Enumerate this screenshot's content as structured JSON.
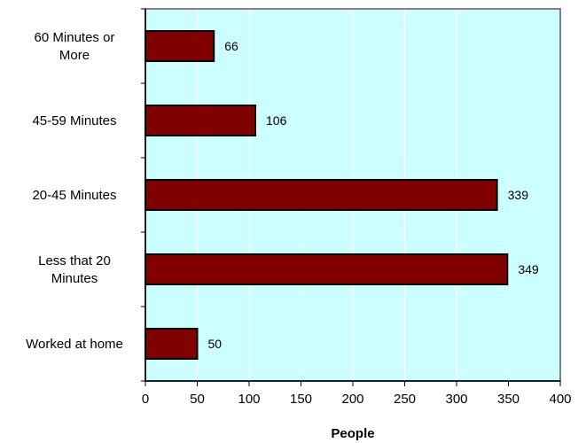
{
  "chart_data": {
    "type": "bar",
    "orientation": "horizontal",
    "categories": [
      [
        "60 Minutes or",
        "More"
      ],
      [
        "45-59 Minutes"
      ],
      [
        "20-45 Minutes"
      ],
      [
        "Less that 20",
        "Minutes"
      ],
      [
        "Worked at home"
      ]
    ],
    "values": [
      66,
      106,
      339,
      349,
      50
    ],
    "xlabel": "People",
    "ylabel": "",
    "title": "",
    "xlim": [
      0,
      400
    ],
    "xticks": [
      0,
      50,
      100,
      150,
      200,
      250,
      300,
      350,
      400
    ],
    "grid": true,
    "legend": "none",
    "colors": {
      "plot_background": "#ccffff",
      "bar_fill": "#800000",
      "bar_stroke": "#000000",
      "gridline": "#ffffff",
      "frame": "#808080"
    }
  }
}
